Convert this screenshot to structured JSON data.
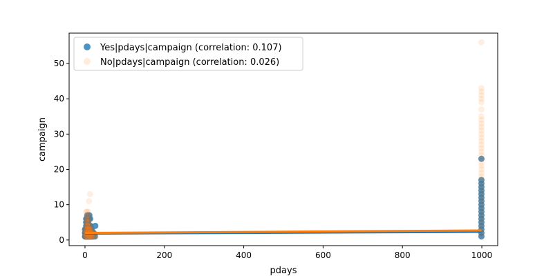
{
  "chart_data": {
    "type": "scatter",
    "xlabel": "pdays",
    "ylabel": "campaign",
    "xlim": [
      -40,
      1040
    ],
    "ylim": [
      -1.6,
      58.6
    ],
    "xticks": [
      0,
      200,
      400,
      600,
      800,
      1000
    ],
    "yticks": [
      0,
      10,
      20,
      30,
      40,
      50
    ],
    "legend_position": "upper-left",
    "series": [
      {
        "name": "Yes|pdays|campaign (correlation: 0.107)",
        "color": "#1f77b4",
        "opacity": 0.8,
        "points": [
          [
            0,
            1
          ],
          [
            0,
            2
          ],
          [
            0,
            3
          ],
          [
            1,
            1
          ],
          [
            1,
            2
          ],
          [
            2,
            1
          ],
          [
            2,
            2
          ],
          [
            2,
            3
          ],
          [
            3,
            1
          ],
          [
            3,
            2
          ],
          [
            3,
            3
          ],
          [
            3,
            4
          ],
          [
            3,
            5
          ],
          [
            3,
            6
          ],
          [
            4,
            1
          ],
          [
            4,
            2
          ],
          [
            4,
            3
          ],
          [
            4,
            4
          ],
          [
            4,
            5
          ],
          [
            5,
            1
          ],
          [
            5,
            2
          ],
          [
            5,
            3
          ],
          [
            5,
            4
          ],
          [
            5,
            6
          ],
          [
            6,
            1
          ],
          [
            6,
            2
          ],
          [
            6,
            3
          ],
          [
            6,
            4
          ],
          [
            6,
            5
          ],
          [
            6,
            7
          ],
          [
            7,
            1
          ],
          [
            7,
            2
          ],
          [
            7,
            3
          ],
          [
            7,
            4
          ],
          [
            8,
            1
          ],
          [
            8,
            2
          ],
          [
            8,
            3
          ],
          [
            8,
            5
          ],
          [
            9,
            1
          ],
          [
            9,
            2
          ],
          [
            9,
            3
          ],
          [
            9,
            4
          ],
          [
            10,
            1
          ],
          [
            10,
            2
          ],
          [
            10,
            3
          ],
          [
            10,
            6
          ],
          [
            11,
            1
          ],
          [
            11,
            2
          ],
          [
            11,
            7
          ],
          [
            12,
            1
          ],
          [
            12,
            2
          ],
          [
            12,
            3
          ],
          [
            12,
            4
          ],
          [
            13,
            1
          ],
          [
            13,
            2
          ],
          [
            13,
            3
          ],
          [
            13,
            6
          ],
          [
            14,
            1
          ],
          [
            14,
            2
          ],
          [
            14,
            4
          ],
          [
            15,
            1
          ],
          [
            15,
            2
          ],
          [
            15,
            3
          ],
          [
            16,
            1
          ],
          [
            16,
            2
          ],
          [
            17,
            1
          ],
          [
            17,
            2
          ],
          [
            17,
            3
          ],
          [
            18,
            1
          ],
          [
            18,
            2
          ],
          [
            19,
            1
          ],
          [
            19,
            2
          ],
          [
            21,
            1
          ],
          [
            22,
            2
          ],
          [
            25,
            1
          ],
          [
            26,
            4
          ],
          [
            999,
            1
          ],
          [
            999,
            2
          ],
          [
            999,
            3
          ],
          [
            999,
            4
          ],
          [
            999,
            5
          ],
          [
            999,
            6
          ],
          [
            999,
            7
          ],
          [
            999,
            8
          ],
          [
            999,
            9
          ],
          [
            999,
            10
          ],
          [
            999,
            11
          ],
          [
            999,
            12
          ],
          [
            999,
            13
          ],
          [
            999,
            14
          ],
          [
            999,
            15
          ],
          [
            999,
            16
          ],
          [
            999,
            17
          ],
          [
            999,
            23
          ]
        ],
        "fit_line": [
          [
            0,
            1.8
          ],
          [
            999,
            2.3
          ]
        ]
      },
      {
        "name": "No|pdays|campaign (correlation: 0.026)",
        "color": "#ff7f0e",
        "opacity": 0.12,
        "points": [
          [
            0,
            1
          ],
          [
            0,
            2
          ],
          [
            0,
            3
          ],
          [
            1,
            1
          ],
          [
            1,
            2
          ],
          [
            2,
            1
          ],
          [
            2,
            2
          ],
          [
            2,
            3
          ],
          [
            3,
            1
          ],
          [
            3,
            2
          ],
          [
            3,
            3
          ],
          [
            3,
            4
          ],
          [
            3,
            5
          ],
          [
            3,
            6
          ],
          [
            3,
            8
          ],
          [
            4,
            1
          ],
          [
            4,
            2
          ],
          [
            4,
            3
          ],
          [
            4,
            4
          ],
          [
            4,
            5
          ],
          [
            4,
            7
          ],
          [
            5,
            1
          ],
          [
            5,
            2
          ],
          [
            5,
            3
          ],
          [
            5,
            4
          ],
          [
            5,
            6
          ],
          [
            5,
            8
          ],
          [
            6,
            1
          ],
          [
            6,
            2
          ],
          [
            6,
            3
          ],
          [
            6,
            4
          ],
          [
            6,
            5
          ],
          [
            6,
            6
          ],
          [
            6,
            7
          ],
          [
            7,
            1
          ],
          [
            7,
            2
          ],
          [
            7,
            3
          ],
          [
            7,
            4
          ],
          [
            7,
            5
          ],
          [
            8,
            1
          ],
          [
            8,
            2
          ],
          [
            8,
            3
          ],
          [
            8,
            5
          ],
          [
            8,
            8
          ],
          [
            9,
            1
          ],
          [
            9,
            2
          ],
          [
            9,
            3
          ],
          [
            9,
            4
          ],
          [
            9,
            6
          ],
          [
            10,
            1
          ],
          [
            10,
            2
          ],
          [
            10,
            3
          ],
          [
            10,
            5
          ],
          [
            10,
            11
          ],
          [
            11,
            1
          ],
          [
            11,
            2
          ],
          [
            11,
            3
          ],
          [
            11,
            6
          ],
          [
            12,
            1
          ],
          [
            12,
            2
          ],
          [
            12,
            3
          ],
          [
            12,
            4
          ],
          [
            12,
            7
          ],
          [
            13,
            1
          ],
          [
            13,
            2
          ],
          [
            13,
            3
          ],
          [
            13,
            13
          ],
          [
            14,
            1
          ],
          [
            14,
            2
          ],
          [
            14,
            3
          ],
          [
            15,
            1
          ],
          [
            15,
            2
          ],
          [
            15,
            4
          ],
          [
            16,
            1
          ],
          [
            16,
            2
          ],
          [
            16,
            3
          ],
          [
            17,
            1
          ],
          [
            17,
            2
          ],
          [
            18,
            1
          ],
          [
            18,
            2
          ],
          [
            19,
            1
          ],
          [
            19,
            3
          ],
          [
            20,
            1
          ],
          [
            21,
            1
          ],
          [
            22,
            2
          ],
          [
            25,
            1
          ],
          [
            27,
            1
          ],
          [
            999,
            1
          ],
          [
            999,
            2
          ],
          [
            999,
            3
          ],
          [
            999,
            4
          ],
          [
            999,
            5
          ],
          [
            999,
            6
          ],
          [
            999,
            7
          ],
          [
            999,
            8
          ],
          [
            999,
            9
          ],
          [
            999,
            10
          ],
          [
            999,
            11
          ],
          [
            999,
            12
          ],
          [
            999,
            13
          ],
          [
            999,
            14
          ],
          [
            999,
            15
          ],
          [
            999,
            16
          ],
          [
            999,
            17
          ],
          [
            999,
            18
          ],
          [
            999,
            19
          ],
          [
            999,
            20
          ],
          [
            999,
            21
          ],
          [
            999,
            22
          ],
          [
            999,
            23
          ],
          [
            999,
            24
          ],
          [
            999,
            25
          ],
          [
            999,
            26
          ],
          [
            999,
            27
          ],
          [
            999,
            28
          ],
          [
            999,
            29
          ],
          [
            999,
            30
          ],
          [
            999,
            31
          ],
          [
            999,
            32
          ],
          [
            999,
            33
          ],
          [
            999,
            34
          ],
          [
            999,
            35
          ],
          [
            999,
            37
          ],
          [
            999,
            39
          ],
          [
            999,
            40
          ],
          [
            999,
            41
          ],
          [
            999,
            42
          ],
          [
            999,
            43
          ],
          [
            999,
            56
          ]
        ],
        "fit_line": [
          [
            0,
            2.0
          ],
          [
            999,
            2.7
          ]
        ]
      }
    ]
  }
}
